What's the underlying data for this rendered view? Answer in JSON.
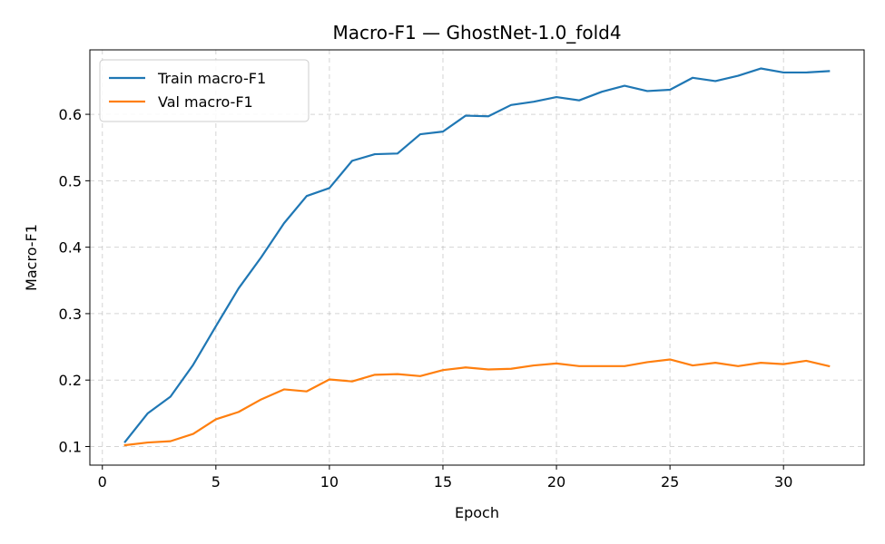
{
  "chart_data": {
    "type": "line",
    "title": "Macro-F1 — GhostNet-1.0_fold4",
    "xlabel": "Epoch",
    "ylabel": "Macro-F1",
    "xlim": [
      -0.55,
      33.55
    ],
    "ylim": [
      0.072,
      0.697
    ],
    "xticks": [
      0,
      5,
      10,
      15,
      20,
      25,
      30
    ],
    "yticks": [
      0.1,
      0.2,
      0.3,
      0.4,
      0.5,
      0.6
    ],
    "grid": true,
    "legend_position": "top-left",
    "x": [
      1,
      2,
      3,
      4,
      5,
      6,
      7,
      8,
      9,
      10,
      11,
      12,
      13,
      14,
      15,
      16,
      17,
      18,
      19,
      20,
      21,
      22,
      23,
      24,
      25,
      26,
      27,
      28,
      29,
      30,
      31,
      32
    ],
    "series": [
      {
        "name": "Train macro-F1",
        "color": "#1f77b4",
        "values": [
          0.107,
          0.15,
          0.175,
          0.223,
          0.281,
          0.338,
          0.385,
          0.436,
          0.477,
          0.489,
          0.53,
          0.54,
          0.541,
          0.57,
          0.574,
          0.598,
          0.597,
          0.614,
          0.619,
          0.626,
          0.621,
          0.634,
          0.643,
          0.635,
          0.637,
          0.655,
          0.65,
          0.658,
          0.669,
          0.663,
          0.663,
          0.665
        ]
      },
      {
        "name": "Val macro-F1",
        "color": "#ff7f0e",
        "values": [
          0.102,
          0.106,
          0.108,
          0.119,
          0.141,
          0.152,
          0.171,
          0.186,
          0.183,
          0.201,
          0.198,
          0.208,
          0.209,
          0.206,
          0.215,
          0.219,
          0.216,
          0.217,
          0.222,
          0.225,
          0.221,
          0.221,
          0.221,
          0.227,
          0.231,
          0.222,
          0.226,
          0.221,
          0.226,
          0.224,
          0.229,
          0.221
        ]
      }
    ]
  }
}
